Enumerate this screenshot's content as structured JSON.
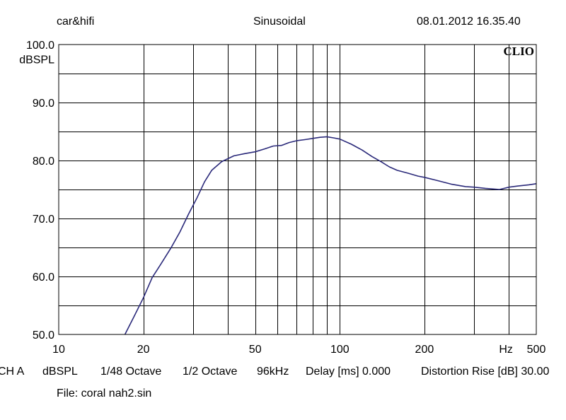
{
  "header": {
    "left": "car&hifi",
    "center": "Sinusoidal",
    "right": "08.01.2012 16.35.40"
  },
  "watermark": "CLIO",
  "footer": {
    "settings": [
      "CH A",
      "dBSPL",
      "1/48 Octave",
      "1/2 Octave",
      "96kHz",
      "Delay [ms] 0.000",
      "Distortion Rise [dB] 30.00"
    ],
    "file": "File: coral nah2.sin"
  },
  "chart_data": {
    "type": "line",
    "title": "Sinusoidal",
    "xlabel": "Hz",
    "ylabel": "dBSPL",
    "x_scale": "log",
    "xlim": [
      10,
      500
    ],
    "ylim": [
      50,
      100
    ],
    "grid": true,
    "x_ticks": [
      {
        "value": 10,
        "label": "10"
      },
      {
        "value": 20,
        "label": "20"
      },
      {
        "value": 50,
        "label": "50"
      },
      {
        "value": 100,
        "label": "100"
      },
      {
        "value": 200,
        "label": "200"
      },
      {
        "value": 500,
        "label": "500"
      }
    ],
    "x_minor_gridlines": [
      20,
      30,
      40,
      50,
      60,
      70,
      80,
      90,
      100,
      200,
      300,
      400
    ],
    "y_ticks": [
      {
        "value": 100,
        "label": "100.0"
      },
      {
        "value": 90,
        "label": "90.0"
      },
      {
        "value": 80,
        "label": "80.0"
      },
      {
        "value": 70,
        "label": "70.0"
      },
      {
        "value": 60,
        "label": "60.0"
      },
      {
        "value": 50,
        "label": "50.0"
      }
    ],
    "y_gridlines": [
      55,
      60,
      65,
      70,
      75,
      80,
      85,
      90,
      95
    ],
    "series": [
      {
        "color": "#2b2a7a",
        "x": [
          17.2,
          18.5,
          20,
          21.5,
          23,
          25,
          27,
          29,
          31,
          33,
          35,
          38,
          42,
          46,
          50,
          54,
          58,
          62,
          66,
          70,
          75,
          80,
          85,
          90,
          95,
          100,
          110,
          120,
          130,
          140,
          150,
          160,
          175,
          190,
          200,
          220,
          250,
          280,
          300,
          330,
          370,
          400,
          430,
          470,
          500
        ],
        "y": [
          50.0,
          53.0,
          56.3,
          59.8,
          62.0,
          64.8,
          67.7,
          70.8,
          73.5,
          76.3,
          78.3,
          79.8,
          80.8,
          81.2,
          81.5,
          82.0,
          82.5,
          82.6,
          83.1,
          83.4,
          83.6,
          83.8,
          84.0,
          84.1,
          83.9,
          83.7,
          82.8,
          81.8,
          80.7,
          79.8,
          78.9,
          78.3,
          77.8,
          77.3,
          77.1,
          76.6,
          75.9,
          75.5,
          75.4,
          75.2,
          75.0,
          75.4,
          75.6,
          75.8,
          76.0
        ]
      }
    ]
  },
  "colors": {
    "background": "#ffffff",
    "grid": "#000000",
    "curve": "#2b2a7a"
  }
}
